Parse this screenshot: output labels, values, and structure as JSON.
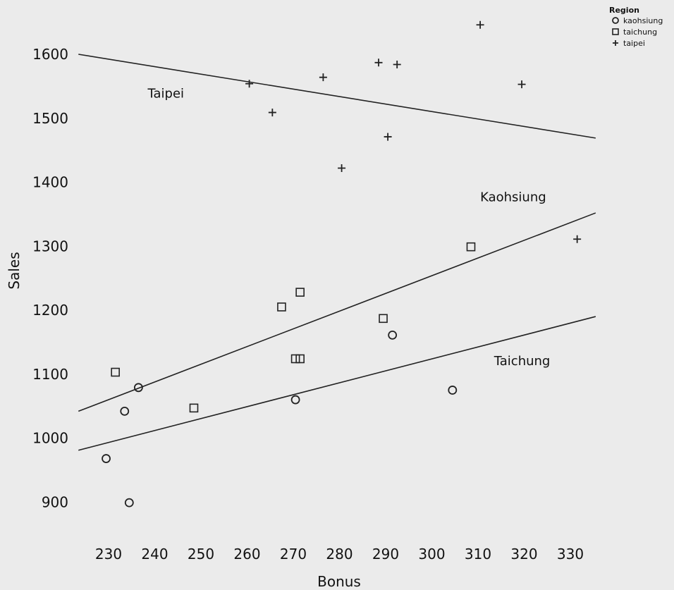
{
  "chart_data": {
    "type": "scatter",
    "xlabel": "Bonus",
    "ylabel": "Sales",
    "xlim": [
      224,
      338
    ],
    "ylim": [
      850,
      1650
    ],
    "xticks": [
      230,
      240,
      250,
      260,
      270,
      280,
      290,
      300,
      310,
      320,
      330
    ],
    "yticks": [
      900,
      1000,
      1100,
      1200,
      1300,
      1400,
      1500,
      1600
    ],
    "grid": false,
    "legend": {
      "title": "Region",
      "position": "top-right",
      "entries": [
        {
          "label": "kaohsiung",
          "marker": "circle"
        },
        {
          "label": "taichung",
          "marker": "square"
        },
        {
          "label": "taipei",
          "marker": "plus"
        }
      ]
    },
    "series": [
      {
        "name": "kaohsiung",
        "marker": "circle",
        "points": [
          {
            "x": 231,
            "y": 968
          },
          {
            "x": 235,
            "y": 1042
          },
          {
            "x": 236,
            "y": 899
          },
          {
            "x": 238,
            "y": 1079
          },
          {
            "x": 272,
            "y": 1060
          },
          {
            "x": 293,
            "y": 1161
          },
          {
            "x": 306,
            "y": 1075
          }
        ]
      },
      {
        "name": "taichung",
        "marker": "square",
        "points": [
          {
            "x": 233,
            "y": 1103
          },
          {
            "x": 250,
            "y": 1047
          },
          {
            "x": 269,
            "y": 1205
          },
          {
            "x": 272,
            "y": 1124
          },
          {
            "x": 273,
            "y": 1124
          },
          {
            "x": 273,
            "y": 1228
          },
          {
            "x": 291,
            "y": 1187
          },
          {
            "x": 310,
            "y": 1299
          }
        ]
      },
      {
        "name": "taipei",
        "marker": "plus",
        "points": [
          {
            "x": 262,
            "y": 1554
          },
          {
            "x": 267,
            "y": 1509
          },
          {
            "x": 278,
            "y": 1564
          },
          {
            "x": 282,
            "y": 1422
          },
          {
            "x": 290,
            "y": 1587
          },
          {
            "x": 292,
            "y": 1471
          },
          {
            "x": 294,
            "y": 1584
          },
          {
            "x": 312,
            "y": 1646
          },
          {
            "x": 321,
            "y": 1553
          },
          {
            "x": 333,
            "y": 1311
          }
        ]
      }
    ],
    "fit_lines": [
      {
        "label": "Taipei",
        "x": [
          225,
          337
        ],
        "y": [
          1600,
          1469
        ],
        "label_at": {
          "x": 240,
          "y": 1532
        }
      },
      {
        "label": "Kaohsiung",
        "x": [
          225,
          337
        ],
        "y": [
          1042,
          1352
        ],
        "label_at": {
          "x": 312,
          "y": 1370
        }
      },
      {
        "label": "Taichung",
        "x": [
          225,
          337
        ],
        "y": [
          981,
          1190
        ],
        "label_at": {
          "x": 315,
          "y": 1114
        }
      }
    ]
  }
}
